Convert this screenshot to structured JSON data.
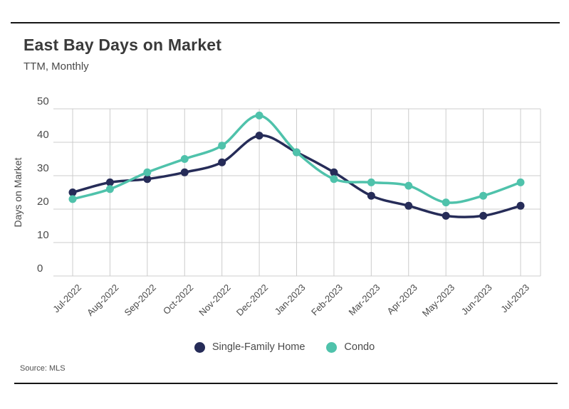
{
  "header": {
    "title": "East Bay Days on Market",
    "subtitle": "TTM, Monthly"
  },
  "footer": {
    "source": "Source: MLS"
  },
  "chart_data": {
    "type": "line",
    "title": "East Bay Days on Market",
    "subtitle": "TTM, Monthly",
    "ylabel": "Days on Market",
    "xlabel": "",
    "categories": [
      "Jul-2022",
      "Aug-2022",
      "Sep-2022",
      "Oct-2022",
      "Nov-2022",
      "Dec-2022",
      "Jan-2023",
      "Feb-2023",
      "Mar-2023",
      "Apr-2023",
      "May-2023",
      "Jun-2023",
      "Jul-2023"
    ],
    "series": [
      {
        "name": "Single-Family Home",
        "color": "#262c58",
        "values": [
          25,
          28,
          29,
          31,
          34,
          42,
          37,
          31,
          24,
          21,
          18,
          18,
          21
        ]
      },
      {
        "name": "Condo",
        "color": "#4fc2ab",
        "values": [
          23,
          26,
          31,
          35,
          39,
          48,
          37,
          29,
          28,
          27,
          22,
          24,
          28
        ]
      }
    ],
    "ylim": [
      0,
      50
    ],
    "yticks": [
      0,
      10,
      20,
      30,
      40,
      50
    ],
    "grid": true,
    "legend_position": "bottom",
    "gridline_color": "#cccccc",
    "tick_label_color": "#4a4a4a"
  }
}
